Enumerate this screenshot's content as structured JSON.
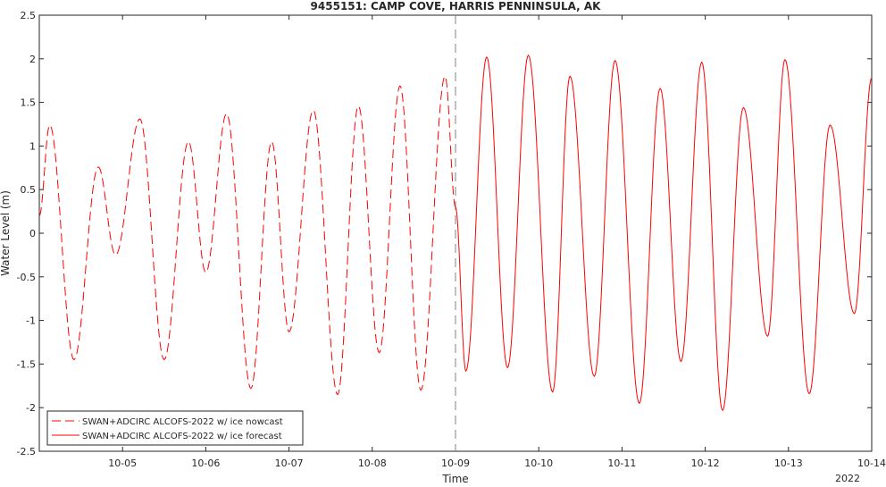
{
  "chart_data": {
    "type": "line",
    "title": "9455151: CAMP COVE, HARRIS PENNINSULA, AK",
    "xlabel": "Time",
    "ylabel": "Water Level (m)",
    "year_label": "2022",
    "xlim": [
      "2022-10-04T00:00",
      "2022-10-14T00:00"
    ],
    "ylim": [
      -2.5,
      2.5
    ],
    "grid": false,
    "legend_position": "bottom-left",
    "xticks": [
      "10-05",
      "10-06",
      "10-07",
      "10-08",
      "10-09",
      "10-10",
      "10-11",
      "10-12",
      "10-13",
      "10-14"
    ],
    "yticks": [
      "-2.5",
      "-2",
      "-1.5",
      "-1",
      "-0.5",
      "0",
      "0.5",
      "1",
      "1.5",
      "2",
      "2.5"
    ],
    "vline_at": "2022-10-09T00:00",
    "series": [
      {
        "name": "SWAN+ADCIRC ALCOFS-2022 w/ ice nowcast",
        "color": "#ff0000",
        "style": "dashed",
        "points": [
          [
            "2022-10-04T00:00",
            0.2
          ],
          [
            "2022-10-04T03:00",
            1.24
          ],
          [
            "2022-10-04T10:00",
            -1.45
          ],
          [
            "2022-10-04T17:00",
            0.76
          ],
          [
            "2022-10-04T22:00",
            -0.25
          ],
          [
            "2022-10-05T05:00",
            1.31
          ],
          [
            "2022-10-05T12:00",
            -1.45
          ],
          [
            "2022-10-05T19:00",
            1.05
          ],
          [
            "2022-10-06T00:00",
            -0.45
          ],
          [
            "2022-10-06T06:00",
            1.37
          ],
          [
            "2022-10-06T13:00",
            -1.78
          ],
          [
            "2022-10-06T19:00",
            1.05
          ],
          [
            "2022-10-07T00:00",
            -1.13
          ],
          [
            "2022-10-07T07:00",
            1.41
          ],
          [
            "2022-10-07T14:00",
            -1.85
          ],
          [
            "2022-10-07T20:00",
            1.46
          ],
          [
            "2022-10-08T02:00",
            -1.37
          ],
          [
            "2022-10-08T08:00",
            1.69
          ],
          [
            "2022-10-08T14:00",
            -1.8
          ],
          [
            "2022-10-08T21:00",
            1.8
          ],
          [
            "2022-10-09T00:00",
            0.3
          ]
        ]
      },
      {
        "name": "SWAN+ADCIRC ALCOFS-2022 w/ ice forecast",
        "color": "#ff0000",
        "style": "solid",
        "points": [
          [
            "2022-10-09T00:00",
            0.3
          ],
          [
            "2022-10-09T03:00",
            -1.58
          ],
          [
            "2022-10-09T09:00",
            2.02
          ],
          [
            "2022-10-09T15:00",
            -1.54
          ],
          [
            "2022-10-09T21:00",
            2.04
          ],
          [
            "2022-10-10T04:00",
            -1.82
          ],
          [
            "2022-10-10T09:00",
            1.8
          ],
          [
            "2022-10-10T16:00",
            -1.64
          ],
          [
            "2022-10-10T22:00",
            1.98
          ],
          [
            "2022-10-11T05:00",
            -1.95
          ],
          [
            "2022-10-11T11:00",
            1.66
          ],
          [
            "2022-10-11T17:00",
            -1.47
          ],
          [
            "2022-10-11T23:00",
            1.96
          ],
          [
            "2022-10-12T05:00",
            -2.03
          ],
          [
            "2022-10-12T11:00",
            1.44
          ],
          [
            "2022-10-12T18:00",
            -1.18
          ],
          [
            "2022-10-12T23:00",
            1.99
          ],
          [
            "2022-10-13T06:00",
            -1.84
          ],
          [
            "2022-10-13T12:00",
            1.24
          ],
          [
            "2022-10-13T19:00",
            -0.92
          ],
          [
            "2022-10-14T00:00",
            1.78
          ]
        ]
      }
    ]
  }
}
